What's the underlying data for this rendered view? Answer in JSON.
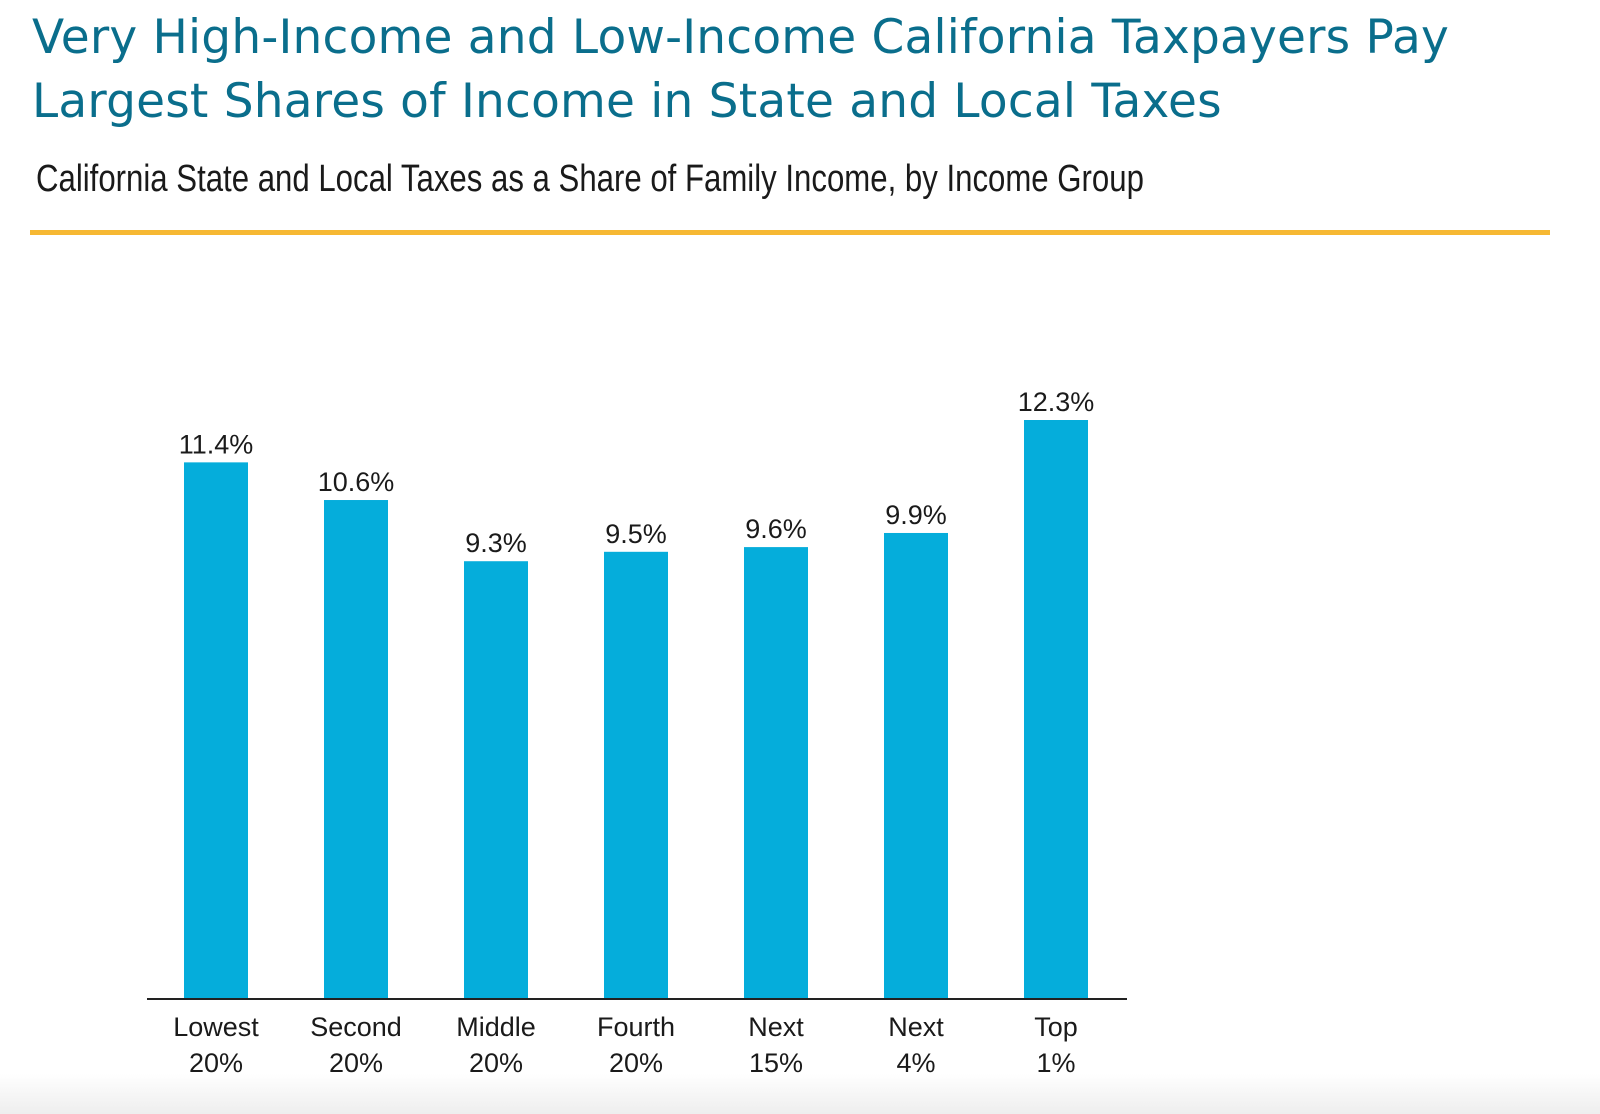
{
  "header": {
    "title": "Very High-Income and Low-Income California Taxpayers Pay Largest Shares of Income in State and Local Taxes",
    "subtitle": "California State and Local Taxes as a Share of Family Income, by Income Group"
  },
  "colors": {
    "title": "#0a6e8c",
    "rule": "#f6b833",
    "bar": "#05addb",
    "axis": "#222222"
  },
  "chart_data": {
    "type": "bar",
    "categories": [
      [
        "Lowest",
        "20%"
      ],
      [
        "Second",
        "20%"
      ],
      [
        "Middle",
        "20%"
      ],
      [
        "Fourth",
        "20%"
      ],
      [
        "Next",
        "15%"
      ],
      [
        "Next",
        "4%"
      ],
      [
        "Top",
        "1%"
      ]
    ],
    "values": [
      11.4,
      10.6,
      9.3,
      9.5,
      9.6,
      9.9,
      12.3
    ],
    "data_labels": [
      "11.4%",
      "10.6%",
      "9.3%",
      "9.5%",
      "9.6%",
      "9.9%",
      "12.3%"
    ],
    "ylim": [
      0,
      12.3
    ],
    "grid": false,
    "legend": "none"
  }
}
